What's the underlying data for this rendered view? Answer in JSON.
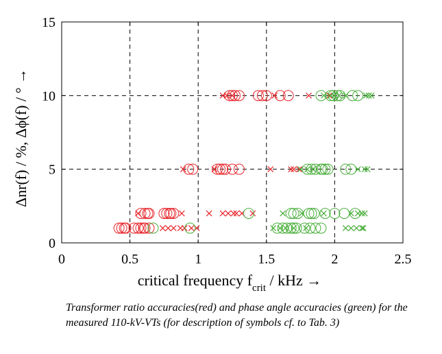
{
  "chart_data": {
    "type": "scatter",
    "xlabel_main": "critical frequency f",
    "xlabel_sub": "crit",
    "xlabel_unit": " / kHz →",
    "ylabel": "Δnr(f) / %, Δϕ(f) / ° →",
    "xlim": [
      0,
      2.5
    ],
    "ylim": [
      0,
      15
    ],
    "xticks": [
      0,
      0.5,
      1,
      1.5,
      2,
      2.5
    ],
    "xtick_labels": [
      "0",
      "0.5",
      "1",
      "1.5",
      "2",
      "2.5"
    ],
    "yticks": [
      0,
      5,
      10,
      15
    ],
    "ytick_labels": [
      "0",
      "5",
      "10",
      "15"
    ],
    "grid": true,
    "series": [
      {
        "name": "ratio accuracies",
        "color": "#e8262c",
        "circles": [
          [
            0.42,
            1
          ],
          [
            0.44,
            1
          ],
          [
            0.46,
            1
          ],
          [
            0.47,
            1
          ],
          [
            0.53,
            1
          ],
          [
            0.56,
            1
          ],
          [
            0.58,
            1
          ],
          [
            0.6,
            1
          ],
          [
            0.61,
            1
          ],
          [
            0.64,
            1
          ],
          [
            0.58,
            2
          ],
          [
            0.61,
            2
          ],
          [
            0.63,
            2
          ],
          [
            0.64,
            2
          ],
          [
            0.75,
            2
          ],
          [
            0.77,
            2
          ],
          [
            0.79,
            2
          ],
          [
            0.8,
            2
          ],
          [
            0.82,
            2
          ],
          [
            0.93,
            5
          ],
          [
            0.96,
            5
          ],
          [
            1.14,
            5
          ],
          [
            1.16,
            5
          ],
          [
            1.18,
            5
          ],
          [
            1.2,
            5
          ],
          [
            1.25,
            5
          ],
          [
            1.3,
            5
          ],
          [
            1.23,
            10
          ],
          [
            1.25,
            10
          ],
          [
            1.27,
            10
          ],
          [
            1.3,
            10
          ],
          [
            1.44,
            10
          ],
          [
            1.47,
            10
          ],
          [
            1.5,
            10
          ],
          [
            1.6,
            10
          ],
          [
            1.66,
            10
          ]
        ],
        "crosses": [
          [
            0.74,
            1
          ],
          [
            0.78,
            1
          ],
          [
            0.82,
            1
          ],
          [
            0.87,
            1
          ],
          [
            0.9,
            1
          ],
          [
            0.95,
            1
          ],
          [
            0.99,
            1
          ],
          [
            0.56,
            2
          ],
          [
            0.88,
            2
          ],
          [
            1.08,
            2
          ],
          [
            1.18,
            2
          ],
          [
            1.22,
            2
          ],
          [
            1.26,
            2
          ],
          [
            1.28,
            2
          ],
          [
            1.32,
            2
          ],
          [
            1.4,
            2
          ],
          [
            0.89,
            5
          ],
          [
            1.12,
            5
          ],
          [
            1.53,
            5
          ],
          [
            1.68,
            5
          ],
          [
            1.7,
            5
          ],
          [
            1.74,
            5
          ],
          [
            1.18,
            10
          ],
          [
            1.21,
            10
          ],
          [
            1.25,
            10
          ],
          [
            1.56,
            10
          ],
          [
            1.81,
            10
          ],
          [
            1.96,
            10
          ]
        ]
      },
      {
        "name": "phase angle accuracies",
        "color": "#48ae3a",
        "circles": [
          [
            0.67,
            1
          ],
          [
            0.94,
            1
          ],
          [
            1.58,
            1
          ],
          [
            1.62,
            1
          ],
          [
            1.65,
            1
          ],
          [
            1.68,
            1
          ],
          [
            1.7,
            1
          ],
          [
            1.72,
            1
          ],
          [
            1.78,
            1
          ],
          [
            1.82,
            1
          ],
          [
            1.86,
            1
          ],
          [
            1.9,
            1
          ],
          [
            1.37,
            2
          ],
          [
            1.68,
            2
          ],
          [
            1.7,
            2
          ],
          [
            1.73,
            2
          ],
          [
            1.81,
            2
          ],
          [
            1.83,
            2
          ],
          [
            1.85,
            2
          ],
          [
            1.93,
            2
          ],
          [
            2.0,
            2
          ],
          [
            2.07,
            2
          ],
          [
            2.15,
            2
          ],
          [
            1.8,
            5
          ],
          [
            1.83,
            5
          ],
          [
            1.86,
            5
          ],
          [
            1.9,
            5
          ],
          [
            1.91,
            5
          ],
          [
            1.93,
            5
          ],
          [
            1.95,
            5
          ],
          [
            2.08,
            5
          ],
          [
            2.12,
            5
          ],
          [
            1.9,
            10
          ],
          [
            1.97,
            10
          ],
          [
            1.99,
            10
          ],
          [
            2.02,
            10
          ],
          [
            2.04,
            10
          ],
          [
            2.13,
            10
          ],
          [
            2.17,
            10
          ]
        ],
        "crosses": [
          [
            1.55,
            1
          ],
          [
            1.6,
            1
          ],
          [
            1.64,
            1
          ],
          [
            1.7,
            1
          ],
          [
            1.79,
            1
          ],
          [
            2.08,
            1
          ],
          [
            2.12,
            1
          ],
          [
            2.16,
            1
          ],
          [
            2.2,
            1
          ],
          [
            2.21,
            1
          ],
          [
            1.62,
            2
          ],
          [
            1.76,
            2
          ],
          [
            1.92,
            2
          ],
          [
            2.12,
            2
          ],
          [
            2.17,
            2
          ],
          [
            2.2,
            2
          ],
          [
            2.22,
            2
          ],
          [
            1.75,
            5
          ],
          [
            1.8,
            5
          ],
          [
            1.84,
            5
          ],
          [
            2.17,
            5
          ],
          [
            2.22,
            5
          ],
          [
            2.24,
            5
          ],
          [
            1.92,
            10
          ],
          [
            1.97,
            10
          ],
          [
            2.0,
            10
          ],
          [
            2.03,
            10
          ],
          [
            2.08,
            10
          ],
          [
            2.23,
            10
          ],
          [
            2.25,
            10
          ],
          [
            2.27,
            10
          ]
        ]
      }
    ]
  },
  "caption": "Transformer ratio accuracies(red) and phase angle accuracies (green) for the measured 110-kV-VTs (for description of symbols cf. to Tab. 3)"
}
